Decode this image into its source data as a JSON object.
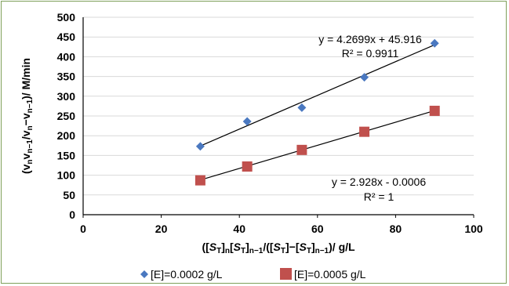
{
  "chart_data": {
    "type": "scatter",
    "xlim": [
      0,
      100
    ],
    "ylim": [
      0,
      500
    ],
    "x_ticks": [
      0,
      20,
      40,
      60,
      80,
      100
    ],
    "y_ticks": [
      0,
      50,
      100,
      150,
      200,
      250,
      300,
      350,
      400,
      450,
      500
    ],
    "grid": "horizontal",
    "legend_position": "bottom",
    "series": [
      {
        "name": "[E]=0.0002 g/L",
        "marker": "diamond",
        "color": "#4a78c0",
        "x": [
          30,
          42,
          56,
          72,
          90
        ],
        "y": [
          173,
          236,
          271,
          348,
          434
        ],
        "trendline": {
          "slope": 4.2699,
          "intercept": 45.916,
          "equation": "y = 4.2699x + 45.916",
          "r2": "R² = 0.9911"
        }
      },
      {
        "name": "[E]=0.0005 g/L",
        "marker": "square",
        "color": "#c0504d",
        "x": [
          30,
          42,
          56,
          72,
          90
        ],
        "y": [
          87,
          122,
          164,
          210,
          263
        ],
        "trendline": {
          "slope": 2.928,
          "intercept": -0.0006,
          "equation": "y = 2.928x - 0.0006",
          "r2": "R² = 1"
        }
      }
    ]
  }
}
